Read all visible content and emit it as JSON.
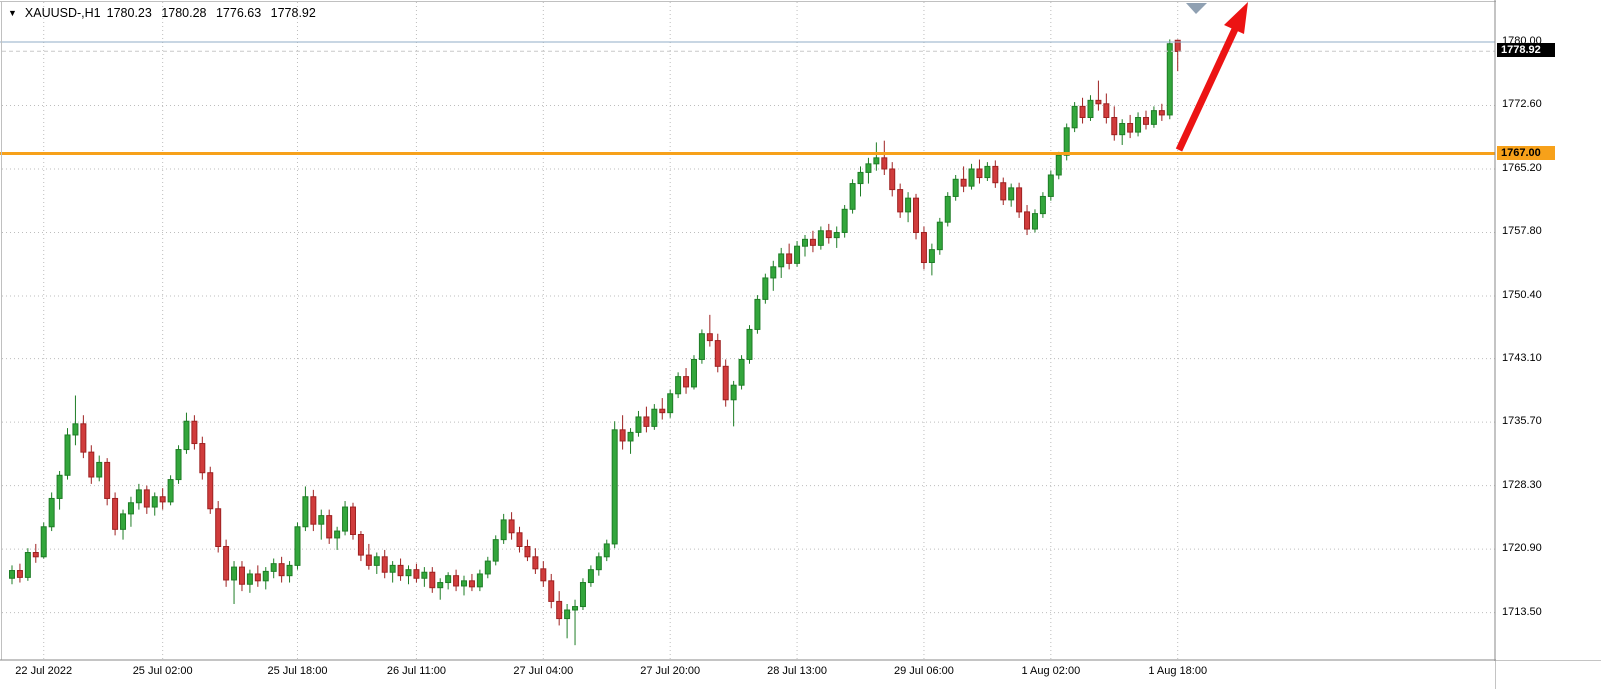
{
  "header": {
    "symbol": "XAUUSD-,H1",
    "open": "1780.23",
    "high": "1780.28",
    "low": "1776.63",
    "close": "1778.92"
  },
  "axis": {
    "current_price_tag": "1778.92",
    "level_tag": "1767.00"
  },
  "colors": {
    "bull": "#33a63c",
    "bull_border": "#1e7d26",
    "bear": "#d03c3c",
    "bear_border": "#9e2121",
    "grid": "#bdbdbd",
    "blue_line": "#92aec7",
    "orange": "#f7a11a",
    "arrow": "#ec1313",
    "marker": "#8fa0b2",
    "tag_current_bg": "#000000",
    "tag_current_text": "#ffffff",
    "tag_level_bg": "#f7a11a",
    "tag_level_text": "#000000"
  },
  "chart_data": {
    "type": "candlestick",
    "symbol": "XAUUSD",
    "timeframe": "H1",
    "title": "XAUUSD-,H1 1780.23 1780.28 1776.63 1778.92",
    "ylim": [
      1709.0,
      1782.0
    ],
    "grid": true,
    "current_price": 1778.92,
    "y_ticks": [
      "1780.00",
      "1772.60",
      "1765.20",
      "1757.80",
      "1750.40",
      "1743.10",
      "1735.70",
      "1728.30",
      "1720.90",
      "1713.50"
    ],
    "x_ticks": [
      {
        "label": "22 Jul 2022",
        "index": 4
      },
      {
        "label": "25 Jul 02:00",
        "index": 19
      },
      {
        "label": "25 Jul 18:00",
        "index": 36
      },
      {
        "label": "26 Jul 11:00",
        "index": 51
      },
      {
        "label": "27 Jul 04:00",
        "index": 67
      },
      {
        "label": "27 Jul 20:00",
        "index": 83
      },
      {
        "label": "28 Jul 13:00",
        "index": 99
      },
      {
        "label": "29 Jul 06:00",
        "index": 115
      },
      {
        "label": "1 Aug 02:00",
        "index": 131
      },
      {
        "label": "1 Aug 18:00",
        "index": 147
      }
    ],
    "levels": [
      {
        "name": "resistance-line-1780",
        "price": 1780.0,
        "color": "#92aec7",
        "width": 1
      },
      {
        "name": "orange-support-line-1767",
        "price": 1767.0,
        "color": "#f7a11a",
        "width": 3
      }
    ],
    "candles": [
      [
        1717.5,
        1719.0,
        1716.8,
        1718.4
      ],
      [
        1718.4,
        1719.2,
        1717.0,
        1717.6
      ],
      [
        1717.6,
        1721.0,
        1717.2,
        1720.5
      ],
      [
        1720.5,
        1721.5,
        1719.3,
        1720.0
      ],
      [
        1720.0,
        1724.0,
        1719.8,
        1723.5
      ],
      [
        1723.5,
        1727.5,
        1723.0,
        1726.8
      ],
      [
        1726.8,
        1730.0,
        1725.5,
        1729.5
      ],
      [
        1729.5,
        1735.0,
        1729.0,
        1734.2
      ],
      [
        1734.2,
        1738.8,
        1733.0,
        1735.5
      ],
      [
        1735.5,
        1736.5,
        1731.5,
        1732.2
      ],
      [
        1732.2,
        1733.0,
        1728.5,
        1729.3
      ],
      [
        1729.3,
        1731.8,
        1728.8,
        1731.0
      ],
      [
        1731.0,
        1731.5,
        1726.0,
        1726.8
      ],
      [
        1726.8,
        1727.5,
        1722.5,
        1723.2
      ],
      [
        1723.2,
        1725.5,
        1722.0,
        1725.0
      ],
      [
        1725.0,
        1727.0,
        1723.5,
        1726.3
      ],
      [
        1726.3,
        1728.5,
        1725.5,
        1727.8
      ],
      [
        1727.8,
        1728.3,
        1725.0,
        1725.8
      ],
      [
        1725.8,
        1727.5,
        1724.8,
        1727.0
      ],
      [
        1727.0,
        1728.0,
        1725.5,
        1726.4
      ],
      [
        1726.4,
        1729.5,
        1726.0,
        1729.0
      ],
      [
        1729.0,
        1733.0,
        1728.5,
        1732.5
      ],
      [
        1732.5,
        1736.8,
        1732.0,
        1735.8
      ],
      [
        1735.8,
        1736.5,
        1732.5,
        1733.2
      ],
      [
        1733.2,
        1734.0,
        1729.0,
        1729.8
      ],
      [
        1729.8,
        1730.5,
        1725.0,
        1725.6
      ],
      [
        1725.6,
        1726.5,
        1720.5,
        1721.2
      ],
      [
        1721.2,
        1722.0,
        1716.5,
        1717.3
      ],
      [
        1717.3,
        1719.5,
        1714.5,
        1718.8
      ],
      [
        1718.8,
        1719.5,
        1716.0,
        1716.8
      ],
      [
        1716.8,
        1718.5,
        1715.8,
        1718.0
      ],
      [
        1718.0,
        1719.0,
        1716.5,
        1717.2
      ],
      [
        1717.2,
        1718.8,
        1716.2,
        1718.3
      ],
      [
        1718.3,
        1719.8,
        1717.5,
        1719.2
      ],
      [
        1719.2,
        1720.0,
        1717.0,
        1717.8
      ],
      [
        1717.8,
        1719.5,
        1717.0,
        1719.0
      ],
      [
        1719.0,
        1724.0,
        1718.5,
        1723.5
      ],
      [
        1723.5,
        1728.2,
        1723.0,
        1727.0
      ],
      [
        1727.0,
        1727.8,
        1723.0,
        1723.8
      ],
      [
        1723.8,
        1725.5,
        1722.0,
        1724.8
      ],
      [
        1724.8,
        1725.5,
        1721.5,
        1722.2
      ],
      [
        1722.2,
        1723.5,
        1720.8,
        1723.0
      ],
      [
        1723.0,
        1726.5,
        1722.5,
        1725.8
      ],
      [
        1725.8,
        1726.3,
        1722.0,
        1722.6
      ],
      [
        1722.6,
        1723.0,
        1719.5,
        1720.2
      ],
      [
        1720.2,
        1721.5,
        1718.5,
        1719.0
      ],
      [
        1719.0,
        1720.5,
        1718.0,
        1720.0
      ],
      [
        1720.0,
        1720.8,
        1717.5,
        1718.2
      ],
      [
        1718.2,
        1719.5,
        1717.0,
        1719.0
      ],
      [
        1719.0,
        1719.8,
        1717.2,
        1717.8
      ],
      [
        1717.8,
        1719.0,
        1716.8,
        1718.5
      ],
      [
        1718.5,
        1719.2,
        1717.0,
        1717.5
      ],
      [
        1717.5,
        1718.8,
        1716.5,
        1718.2
      ],
      [
        1718.2,
        1718.8,
        1715.8,
        1716.4
      ],
      [
        1716.4,
        1717.5,
        1715.0,
        1717.0
      ],
      [
        1717.0,
        1718.2,
        1716.2,
        1717.8
      ],
      [
        1717.8,
        1718.5,
        1716.0,
        1716.6
      ],
      [
        1716.6,
        1717.8,
        1715.5,
        1717.2
      ],
      [
        1717.2,
        1718.0,
        1716.0,
        1716.5
      ],
      [
        1716.5,
        1718.5,
        1716.0,
        1718.0
      ],
      [
        1718.0,
        1720.0,
        1717.5,
        1719.5
      ],
      [
        1719.5,
        1722.5,
        1719.0,
        1722.0
      ],
      [
        1722.0,
        1725.0,
        1721.5,
        1724.3
      ],
      [
        1724.3,
        1725.2,
        1722.0,
        1722.8
      ],
      [
        1722.8,
        1723.5,
        1720.5,
        1721.2
      ],
      [
        1721.2,
        1722.0,
        1719.5,
        1720.0
      ],
      [
        1720.0,
        1721.0,
        1718.0,
        1718.6
      ],
      [
        1718.6,
        1719.5,
        1716.5,
        1717.2
      ],
      [
        1717.2,
        1718.0,
        1714.0,
        1714.8
      ],
      [
        1714.8,
        1716.0,
        1712.0,
        1712.8
      ],
      [
        1712.8,
        1714.5,
        1710.5,
        1713.8
      ],
      [
        1713.8,
        1715.0,
        1709.7,
        1714.2
      ],
      [
        1714.2,
        1717.5,
        1713.8,
        1717.0
      ],
      [
        1717.0,
        1719.0,
        1716.5,
        1718.5
      ],
      [
        1718.5,
        1720.5,
        1717.8,
        1720.0
      ],
      [
        1720.0,
        1722.0,
        1719.5,
        1721.5
      ],
      [
        1721.5,
        1735.8,
        1721.0,
        1734.8
      ],
      [
        1734.8,
        1736.5,
        1732.5,
        1733.5
      ],
      [
        1733.5,
        1735.0,
        1732.0,
        1734.5
      ],
      [
        1734.5,
        1737.0,
        1734.0,
        1736.3
      ],
      [
        1736.3,
        1737.5,
        1734.5,
        1735.2
      ],
      [
        1735.2,
        1737.8,
        1734.8,
        1737.2
      ],
      [
        1737.2,
        1738.5,
        1736.0,
        1736.8
      ],
      [
        1736.8,
        1739.5,
        1736.2,
        1739.0
      ],
      [
        1739.0,
        1741.5,
        1738.5,
        1741.0
      ],
      [
        1741.0,
        1742.0,
        1739.0,
        1739.8
      ],
      [
        1739.8,
        1743.5,
        1739.5,
        1743.0
      ],
      [
        1743.0,
        1746.5,
        1742.5,
        1746.0
      ],
      [
        1746.0,
        1748.2,
        1744.5,
        1745.2
      ],
      [
        1745.2,
        1746.0,
        1741.5,
        1742.2
      ],
      [
        1742.2,
        1743.0,
        1737.5,
        1738.3
      ],
      [
        1738.3,
        1740.5,
        1735.2,
        1740.0
      ],
      [
        1740.0,
        1743.5,
        1739.5,
        1743.0
      ],
      [
        1743.0,
        1747.0,
        1742.5,
        1746.5
      ],
      [
        1746.5,
        1750.5,
        1746.0,
        1750.0
      ],
      [
        1750.0,
        1753.0,
        1749.5,
        1752.5
      ],
      [
        1752.5,
        1754.5,
        1751.0,
        1753.8
      ],
      [
        1753.8,
        1756.0,
        1752.5,
        1755.3
      ],
      [
        1755.3,
        1756.5,
        1753.5,
        1754.2
      ],
      [
        1754.2,
        1756.8,
        1753.8,
        1756.2
      ],
      [
        1756.2,
        1757.5,
        1755.0,
        1757.0
      ],
      [
        1757.0,
        1758.0,
        1755.5,
        1756.3
      ],
      [
        1756.3,
        1758.5,
        1755.8,
        1758.0
      ],
      [
        1758.0,
        1758.8,
        1756.5,
        1757.2
      ],
      [
        1757.2,
        1758.5,
        1756.0,
        1757.8
      ],
      [
        1757.8,
        1761.0,
        1757.2,
        1760.5
      ],
      [
        1760.5,
        1764.0,
        1760.0,
        1763.5
      ],
      [
        1763.5,
        1765.5,
        1762.0,
        1764.8
      ],
      [
        1764.8,
        1766.5,
        1763.5,
        1765.8
      ],
      [
        1765.8,
        1768.3,
        1765.0,
        1766.5
      ],
      [
        1766.5,
        1768.5,
        1764.5,
        1765.2
      ],
      [
        1765.2,
        1766.0,
        1762.0,
        1762.8
      ],
      [
        1762.8,
        1763.5,
        1759.5,
        1760.2
      ],
      [
        1760.2,
        1762.5,
        1759.0,
        1761.8
      ],
      [
        1761.8,
        1762.3,
        1757.0,
        1757.8
      ],
      [
        1757.8,
        1758.5,
        1753.5,
        1754.3
      ],
      [
        1754.3,
        1756.5,
        1752.8,
        1755.8
      ],
      [
        1755.8,
        1759.5,
        1755.2,
        1759.0
      ],
      [
        1759.0,
        1762.5,
        1758.5,
        1762.0
      ],
      [
        1762.0,
        1764.5,
        1761.5,
        1764.0
      ],
      [
        1764.0,
        1765.5,
        1762.5,
        1763.2
      ],
      [
        1763.2,
        1765.8,
        1762.8,
        1765.2
      ],
      [
        1765.2,
        1766.3,
        1763.5,
        1764.2
      ],
      [
        1764.2,
        1766.0,
        1763.8,
        1765.5
      ],
      [
        1765.5,
        1766.2,
        1763.0,
        1763.6
      ],
      [
        1763.6,
        1764.2,
        1761.0,
        1761.6
      ],
      [
        1761.6,
        1763.5,
        1760.8,
        1763.0
      ],
      [
        1763.0,
        1763.6,
        1759.5,
        1760.2
      ],
      [
        1760.2,
        1761.0,
        1757.5,
        1758.2
      ],
      [
        1758.2,
        1760.5,
        1757.8,
        1760.0
      ],
      [
        1760.0,
        1762.5,
        1759.5,
        1762.0
      ],
      [
        1762.0,
        1765.0,
        1761.5,
        1764.5
      ],
      [
        1764.5,
        1767.2,
        1764.0,
        1766.8
      ],
      [
        1766.8,
        1770.5,
        1766.2,
        1770.0
      ],
      [
        1770.0,
        1773.0,
        1769.5,
        1772.5
      ],
      [
        1772.5,
        1773.5,
        1770.5,
        1771.2
      ],
      [
        1771.2,
        1773.8,
        1770.8,
        1773.2
      ],
      [
        1773.2,
        1775.5,
        1772.0,
        1772.8
      ],
      [
        1772.8,
        1774.0,
        1770.5,
        1771.2
      ],
      [
        1771.2,
        1772.5,
        1768.5,
        1769.2
      ],
      [
        1769.2,
        1771.0,
        1768.0,
        1770.5
      ],
      [
        1770.5,
        1771.5,
        1768.8,
        1769.5
      ],
      [
        1769.5,
        1771.8,
        1769.0,
        1771.2
      ],
      [
        1771.2,
        1772.0,
        1769.8,
        1770.4
      ],
      [
        1770.4,
        1772.5,
        1770.0,
        1772.0
      ],
      [
        1772.0,
        1772.8,
        1770.8,
        1771.5
      ],
      [
        1771.5,
        1780.3,
        1771.0,
        1779.8
      ],
      [
        1780.2,
        1780.3,
        1776.6,
        1778.9
      ]
    ]
  }
}
